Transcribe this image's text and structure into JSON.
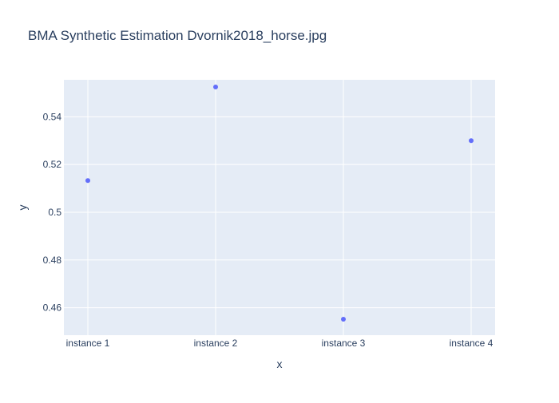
{
  "chart_data": {
    "type": "scatter",
    "title": "BMA Synthetic Estimation Dvornik2018_horse.jpg",
    "xlabel": "x",
    "ylabel": "y",
    "categories": [
      "instance 1",
      "instance 2",
      "instance 3",
      "instance 4"
    ],
    "series": [
      {
        "values": [
          0.5133,
          0.5525,
          0.4552,
          0.53
        ]
      }
    ],
    "ylim": [
      0.4485,
      0.5555
    ],
    "yticks": [
      0.46,
      0.48,
      0.5,
      0.52,
      0.54
    ],
    "ytick_labels": [
      "0.46",
      "0.48",
      "0.5",
      "0.52",
      "0.54"
    ],
    "grid": true,
    "colors": {
      "plot_bg": "#e5ecf6",
      "grid": "#ffffff",
      "marker": "#636efa",
      "text": "#2a3f5f"
    }
  }
}
